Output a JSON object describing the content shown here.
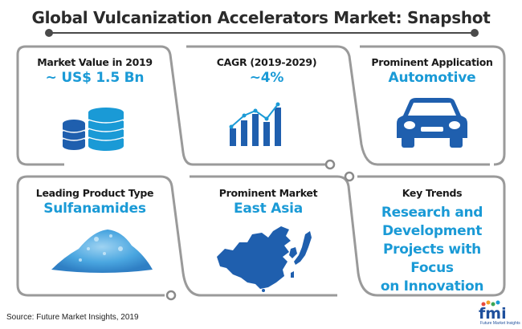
{
  "title": "Global Vulcanization Accelerators Market: Snapshot",
  "cards": [
    {
      "label": "Market Value in 2019",
      "value": "~ US$ 1.5 Bn",
      "icon": "database-coins-icon"
    },
    {
      "label": "CAGR (2019-2029)",
      "value": "~4%",
      "icon": "bar-chart-growth-icon"
    },
    {
      "label": "Prominent Application",
      "value": "Automotive",
      "icon": "car-icon"
    },
    {
      "label": "Leading Product Type",
      "value": "Sulfanamides",
      "icon": "powder-pile-icon"
    },
    {
      "label": "Prominent Market",
      "value": "East Asia",
      "icon": "east-asia-map-icon"
    },
    {
      "label": "Key Trends",
      "value_lines": [
        "Research and",
        "Development",
        "Projects with Focus",
        "on Innovation"
      ]
    }
  ],
  "source": "Source: Future Market Insights, 2019",
  "logo": {
    "text": "fmi",
    "subtext": "Future Market Insights"
  },
  "colors": {
    "accent": "#1a9ad6",
    "icon": "#1f5fae",
    "frame": "#9a9a9a",
    "title": "#2b2b2b"
  }
}
